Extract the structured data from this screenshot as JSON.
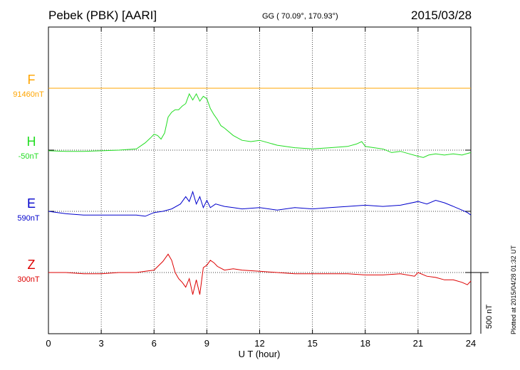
{
  "header": {
    "station": "Pebek (PBK)  [AARI]",
    "coords": "GG ( 70.09°, 170.93°)",
    "date": "2015/03/28"
  },
  "plotted_note": "Plotted at 2015/04/28 01:32 UT",
  "scale_label": "500 nT",
  "chart_data": {
    "type": "line",
    "xlabel": "U T (hour)",
    "xlim": [
      0,
      24
    ],
    "xticks": [
      0,
      3,
      6,
      9,
      12,
      15,
      18,
      21,
      24
    ],
    "scale_nT": 500,
    "series": [
      {
        "name": "F",
        "baseline_label": "91460nT",
        "color": "#ffa500",
        "x": [
          0,
          24
        ],
        "y": [
          0,
          0
        ]
      },
      {
        "name": "H",
        "baseline_label": "-50nT",
        "color": "#22dd22",
        "x": [
          0,
          1,
          2,
          3,
          4,
          4.5,
          5,
          5.5,
          5.8,
          6.0,
          6.2,
          6.4,
          6.6,
          6.8,
          7.0,
          7.2,
          7.4,
          7.6,
          7.8,
          8.0,
          8.2,
          8.4,
          8.6,
          8.8,
          9.0,
          9.2,
          9.4,
          9.6,
          9.8,
          10,
          10.5,
          11,
          11.5,
          12,
          13,
          14,
          15,
          16,
          17,
          17.5,
          17.8,
          18,
          18.5,
          19,
          19.5,
          20,
          20.5,
          21,
          21.3,
          21.6,
          22,
          22.5,
          23,
          23.5,
          24
        ],
        "y": [
          -5,
          -10,
          -10,
          -5,
          0,
          5,
          10,
          60,
          100,
          130,
          120,
          90,
          140,
          270,
          310,
          330,
          330,
          360,
          380,
          460,
          410,
          460,
          400,
          440,
          420,
          340,
          290,
          250,
          200,
          180,
          120,
          80,
          70,
          80,
          40,
          20,
          10,
          20,
          30,
          50,
          70,
          30,
          20,
          10,
          -20,
          -10,
          -30,
          -50,
          -60,
          -40,
          -30,
          -40,
          -30,
          -40,
          -20
        ]
      },
      {
        "name": "E",
        "baseline_label": "590nT",
        "color": "#0000cc",
        "x": [
          0,
          1,
          2,
          3,
          4,
          5,
          5.5,
          6,
          6.5,
          7,
          7.5,
          7.8,
          8.0,
          8.2,
          8.4,
          8.6,
          8.8,
          9.0,
          9.2,
          9.5,
          10,
          10.5,
          11,
          12,
          13,
          14,
          15,
          16,
          17,
          18,
          19,
          20,
          21,
          21.5,
          22,
          22.5,
          23,
          23.5,
          23.8,
          24
        ],
        "y": [
          0,
          -20,
          -30,
          -30,
          -30,
          -30,
          -40,
          -10,
          0,
          20,
          60,
          120,
          80,
          160,
          60,
          120,
          30,
          90,
          30,
          60,
          40,
          30,
          20,
          30,
          10,
          30,
          20,
          30,
          40,
          50,
          40,
          50,
          80,
          60,
          90,
          70,
          40,
          10,
          -10,
          -30
        ]
      },
      {
        "name": "Z",
        "baseline_label": "300nT",
        "color": "#dd0000",
        "x": [
          0,
          1,
          2,
          3,
          4,
          5,
          5.5,
          6,
          6.5,
          6.8,
          7.0,
          7.2,
          7.4,
          7.6,
          7.8,
          8.0,
          8.2,
          8.4,
          8.6,
          8.8,
          9.0,
          9.2,
          9.4,
          9.6,
          10,
          10.5,
          11,
          12,
          13,
          14,
          15,
          16,
          17,
          18,
          19,
          20,
          20.8,
          21,
          21.5,
          22,
          22.5,
          23,
          23.5,
          23.8,
          24
        ],
        "y": [
          0,
          0,
          -10,
          -10,
          0,
          0,
          10,
          20,
          90,
          150,
          100,
          0,
          -50,
          -80,
          -120,
          -50,
          -180,
          -60,
          -180,
          40,
          60,
          100,
          80,
          50,
          20,
          30,
          20,
          10,
          0,
          -10,
          -10,
          -10,
          -10,
          -20,
          -20,
          -10,
          -30,
          0,
          -30,
          -40,
          -60,
          -60,
          -80,
          -100,
          -70
        ]
      }
    ]
  }
}
